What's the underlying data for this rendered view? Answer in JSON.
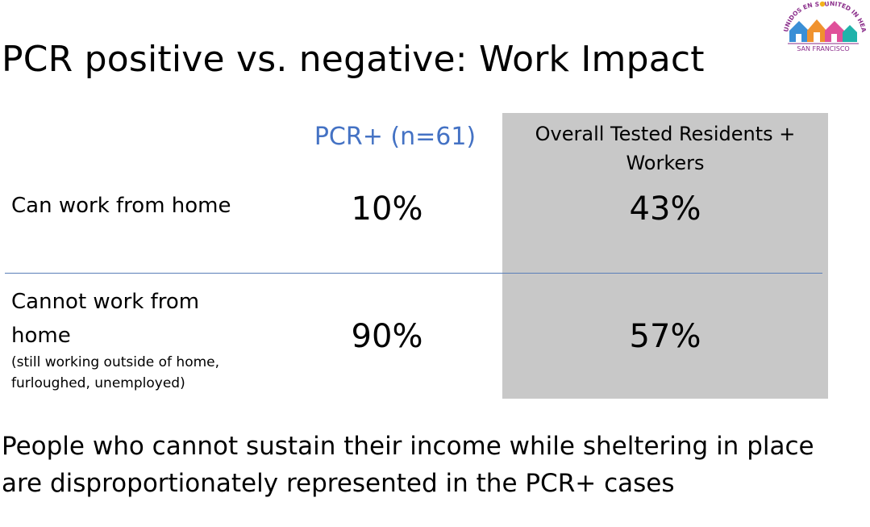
{
  "slide": {
    "title": "PCR positive vs. negative: Work Impact",
    "logo": {
      "arc_text_left": "UNIDOS EN SALUD",
      "arc_text_right": "UNITED IN HEALTH",
      "bottom_text": "SAN FRANCISCO",
      "colors": {
        "text": "#8a2d8a",
        "house_blue": "#3a8fd6",
        "house_orange": "#f0922e",
        "house_pink": "#e0509a",
        "house_teal": "#20b2aa",
        "sun": "#f2b21c"
      }
    },
    "table": {
      "headers": {
        "pcr_positive": "PCR+ (n=61)",
        "overall_line1": "Overall Tested Residents +",
        "overall_line2": "Workers"
      },
      "rows": [
        {
          "label_line1": "Can work from home",
          "pcr_positive": "10%",
          "overall": "43%"
        },
        {
          "label_line1": "Cannot work from",
          "label_line2": "home",
          "sub_line1": "(still working outside of home,",
          "sub_line2": "furloughed, unemployed)",
          "pcr_positive": "90%",
          "overall": "57%"
        }
      ]
    },
    "footer": {
      "line1": "People who cannot sustain their income while sheltering in place",
      "line2": "are disproportionately represented in the PCR+ cases"
    },
    "colors": {
      "pcr_header": "#4472c4",
      "highlight_column": "#c8c8c8",
      "divider": "#5a7fb8"
    }
  }
}
